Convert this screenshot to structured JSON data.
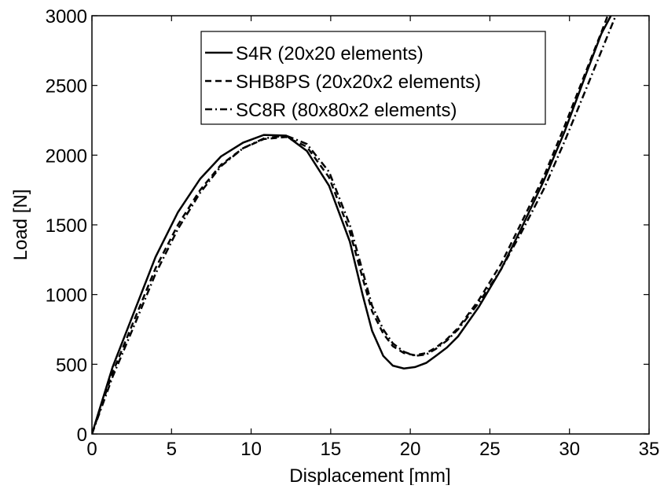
{
  "chart_data": {
    "type": "line",
    "title": "",
    "xlabel": "Displacement [mm]",
    "ylabel": "Load [N]",
    "xlim": [
      0,
      35
    ],
    "ylim": [
      0,
      3000
    ],
    "xticks": [
      0,
      5,
      10,
      15,
      20,
      25,
      30,
      35
    ],
    "yticks": [
      0,
      500,
      1000,
      1500,
      2000,
      2500,
      3000
    ],
    "grid": false,
    "legend_position": "top-center",
    "series": [
      {
        "name": "S4R (20x20 elements)",
        "color": "#000000",
        "style": "solid",
        "points": [
          [
            0,
            0
          ],
          [
            1.3,
            480
          ],
          [
            2.7,
            890
          ],
          [
            4.0,
            1270
          ],
          [
            5.4,
            1590
          ],
          [
            6.8,
            1830
          ],
          [
            8.1,
            1990
          ],
          [
            9.5,
            2090
          ],
          [
            10.8,
            2145
          ],
          [
            12.2,
            2140
          ],
          [
            13.5,
            2030
          ],
          [
            14.9,
            1780
          ],
          [
            16.2,
            1380
          ],
          [
            17.0,
            1000
          ],
          [
            17.6,
            740
          ],
          [
            18.3,
            560
          ],
          [
            18.9,
            490
          ],
          [
            19.6,
            470
          ],
          [
            20.3,
            480
          ],
          [
            21.0,
            510
          ],
          [
            21.6,
            560
          ],
          [
            22.3,
            620
          ],
          [
            23.0,
            700
          ],
          [
            24.3,
            910
          ],
          [
            25.7,
            1180
          ],
          [
            27.0,
            1480
          ],
          [
            28.4,
            1820
          ],
          [
            29.7,
            2170
          ],
          [
            31.1,
            2600
          ],
          [
            32.0,
            2870
          ],
          [
            32.6,
            3000
          ]
        ]
      },
      {
        "name": "SHB8PS (20x20x2 elements)",
        "color": "#000000",
        "style": "dashed",
        "points": [
          [
            0,
            0
          ],
          [
            1.3,
            440
          ],
          [
            2.7,
            830
          ],
          [
            4.0,
            1190
          ],
          [
            5.4,
            1500
          ],
          [
            6.8,
            1750
          ],
          [
            8.1,
            1930
          ],
          [
            9.5,
            2050
          ],
          [
            10.8,
            2115
          ],
          [
            12.2,
            2130
          ],
          [
            13.5,
            2060
          ],
          [
            14.9,
            1840
          ],
          [
            16.2,
            1450
          ],
          [
            17.0,
            1120
          ],
          [
            17.6,
            880
          ],
          [
            18.3,
            720
          ],
          [
            18.9,
            630
          ],
          [
            19.6,
            580
          ],
          [
            20.3,
            565
          ],
          [
            21.0,
            580
          ],
          [
            21.6,
            620
          ],
          [
            22.3,
            680
          ],
          [
            23.0,
            760
          ],
          [
            24.3,
            960
          ],
          [
            25.7,
            1220
          ],
          [
            27.0,
            1520
          ],
          [
            28.4,
            1850
          ],
          [
            29.7,
            2210
          ],
          [
            31.1,
            2620
          ],
          [
            32.0,
            2880
          ],
          [
            32.4,
            3000
          ]
        ]
      },
      {
        "name": "SC8R (80x80x2 elements)",
        "color": "#000000",
        "style": "dashdot",
        "points": [
          [
            0,
            0
          ],
          [
            1.3,
            410
          ],
          [
            2.7,
            790
          ],
          [
            4.0,
            1150
          ],
          [
            5.4,
            1470
          ],
          [
            6.8,
            1730
          ],
          [
            8.1,
            1920
          ],
          [
            9.5,
            2050
          ],
          [
            10.8,
            2120
          ],
          [
            12.2,
            2140
          ],
          [
            13.5,
            2080
          ],
          [
            14.9,
            1880
          ],
          [
            16.2,
            1500
          ],
          [
            17.0,
            1170
          ],
          [
            17.6,
            920
          ],
          [
            18.3,
            750
          ],
          [
            18.9,
            650
          ],
          [
            19.6,
            590
          ],
          [
            20.3,
            560
          ],
          [
            21.0,
            570
          ],
          [
            21.6,
            610
          ],
          [
            22.3,
            670
          ],
          [
            23.0,
            750
          ],
          [
            24.3,
            940
          ],
          [
            25.7,
            1180
          ],
          [
            27.0,
            1450
          ],
          [
            28.4,
            1760
          ],
          [
            29.7,
            2100
          ],
          [
            31.1,
            2490
          ],
          [
            32.3,
            2830
          ],
          [
            32.9,
            3000
          ]
        ]
      }
    ]
  }
}
